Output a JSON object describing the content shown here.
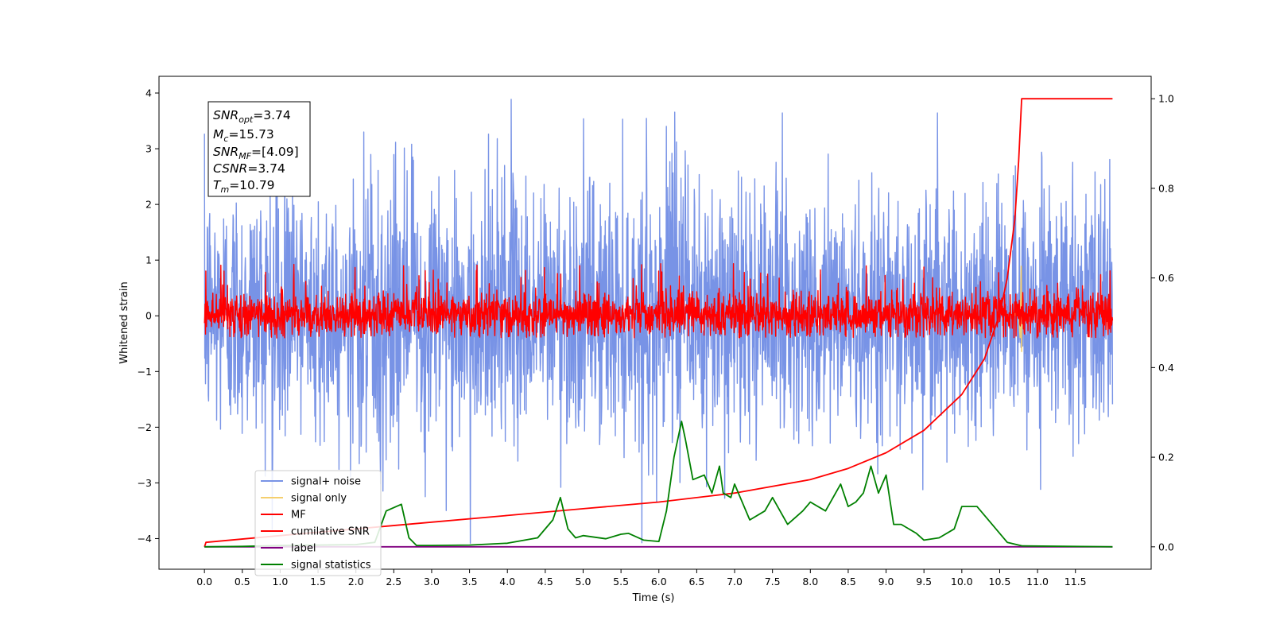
{
  "chart_data": {
    "type": "line",
    "xlabel": "Time (s)",
    "ylabel": "Whitened strain",
    "xlim": [
      -0.6,
      12.5
    ],
    "ylim": [
      -4.55,
      4.3
    ],
    "y2lim": [
      -0.05,
      1.05
    ],
    "grid": false,
    "legend_position": "lower-left",
    "x_ticks": [
      0.0,
      0.5,
      1.0,
      1.5,
      2.0,
      2.5,
      3.0,
      3.5,
      4.0,
      4.5,
      5.0,
      5.5,
      6.0,
      6.5,
      7.0,
      7.5,
      8.0,
      8.5,
      9.0,
      9.5,
      10.0,
      10.5,
      11.0,
      11.5
    ],
    "x_tick_labels": [
      "0.0",
      "0.5",
      "1.0",
      "1.5",
      "2.0",
      "2.5",
      "3.0",
      "3.5",
      "4.0",
      "4.5",
      "5.0",
      "5.5",
      "6.0",
      "6.5",
      "7.0",
      "7.5",
      "8.0",
      "8.5",
      "9.0",
      "9.5",
      "10.0",
      "10.5",
      "11.0",
      "11.5"
    ],
    "y_ticks": [
      -4,
      -3,
      -2,
      -1,
      0,
      1,
      2,
      3,
      4
    ],
    "y_tick_labels": [
      "−4",
      "−3",
      "−2",
      "−1",
      "0",
      "1",
      "2",
      "3",
      "4"
    ],
    "y2_ticks": [
      0.0,
      0.2,
      0.4,
      0.6,
      0.8,
      1.0
    ],
    "y2_tick_labels": [
      "0.0",
      "0.2",
      "0.4",
      "0.6",
      "0.8",
      "1.0"
    ],
    "annotation": {
      "snr_opt": {
        "base": "SNR",
        "sub": "opt",
        "value": "=3.74"
      },
      "mc": {
        "base": "M",
        "sub": "c",
        "value": "=15.73"
      },
      "snr_mf": {
        "base": "SNR",
        "sub": "MF",
        "value": "=[4.09]"
      },
      "csnr": {
        "base": "CSNR",
        "value": "=3.74"
      },
      "tm": {
        "base": "T",
        "sub": "m",
        "value": "=10.79"
      }
    },
    "series": [
      {
        "name": "signal+ noise",
        "color": "#7893e6",
        "axis": "left",
        "description_values": {
          "t_start": 0.0,
          "t_end": 11.99,
          "envelope_min": -4.1,
          "envelope_max": 3.9,
          "typical_range": [
            -2.3,
            2.6
          ]
        }
      },
      {
        "name": "signal only",
        "color": "#f5cf6e",
        "axis": "left",
        "x": [
          10.7,
          10.74,
          10.77,
          10.785,
          10.79,
          10.795,
          10.81
        ],
        "y": [
          0.0,
          0.2,
          -0.4,
          0.9,
          -0.65,
          0.3,
          0.0
        ]
      },
      {
        "name": "MF",
        "color": "#ff0000",
        "axis": "left",
        "description_values": {
          "t_start": 0.0,
          "t_end": 11.99,
          "typical_range": [
            -0.4,
            0.6
          ],
          "max": 1.0
        }
      },
      {
        "name": "cumilative SNR",
        "color": "#ff0000",
        "axis": "right",
        "x": [
          0.0,
          0.02,
          1.0,
          2.0,
          3.0,
          4.0,
          5.0,
          6.0,
          7.0,
          8.0,
          8.5,
          9.0,
          9.5,
          10.0,
          10.3,
          10.5,
          10.6,
          10.7,
          10.75,
          10.79,
          11.0,
          11.99
        ],
        "y": [
          0.0,
          0.01,
          0.025,
          0.04,
          0.055,
          0.07,
          0.085,
          0.1,
          0.12,
          0.15,
          0.175,
          0.21,
          0.26,
          0.34,
          0.42,
          0.52,
          0.6,
          0.73,
          0.86,
          1.0,
          1.0,
          1.0
        ]
      },
      {
        "name": "label",
        "color": "#800080",
        "axis": "right",
        "x": [
          0.0,
          11.99
        ],
        "y": [
          0.0,
          0.0
        ]
      },
      {
        "name": "signal statistics",
        "color": "#008000",
        "axis": "right",
        "x": [
          0.0,
          0.5,
          1.0,
          1.5,
          2.0,
          2.25,
          2.4,
          2.6,
          2.7,
          2.8,
          3.0,
          3.5,
          4.0,
          4.4,
          4.6,
          4.7,
          4.8,
          4.9,
          5.0,
          5.3,
          5.5,
          5.6,
          5.8,
          6.0,
          6.1,
          6.2,
          6.3,
          6.35,
          6.45,
          6.6,
          6.7,
          6.8,
          6.85,
          6.95,
          7.0,
          7.2,
          7.4,
          7.5,
          7.7,
          7.9,
          8.0,
          8.2,
          8.4,
          8.5,
          8.6,
          8.7,
          8.8,
          8.9,
          9.0,
          9.1,
          9.2,
          9.4,
          9.5,
          9.7,
          9.9,
          10.0,
          10.2,
          10.4,
          10.5,
          10.6,
          10.8,
          11.99
        ],
        "y": [
          0.0,
          0.001,
          0.003,
          0.004,
          0.005,
          0.01,
          0.08,
          0.095,
          0.02,
          0.003,
          0.003,
          0.004,
          0.008,
          0.02,
          0.06,
          0.11,
          0.04,
          0.02,
          0.025,
          0.018,
          0.028,
          0.03,
          0.015,
          0.012,
          0.08,
          0.2,
          0.28,
          0.24,
          0.15,
          0.16,
          0.12,
          0.18,
          0.12,
          0.11,
          0.14,
          0.06,
          0.08,
          0.11,
          0.05,
          0.08,
          0.1,
          0.08,
          0.14,
          0.09,
          0.1,
          0.12,
          0.18,
          0.12,
          0.16,
          0.05,
          0.05,
          0.03,
          0.015,
          0.02,
          0.04,
          0.09,
          0.09,
          0.05,
          0.03,
          0.01,
          0.002,
          0.0
        ]
      }
    ]
  }
}
